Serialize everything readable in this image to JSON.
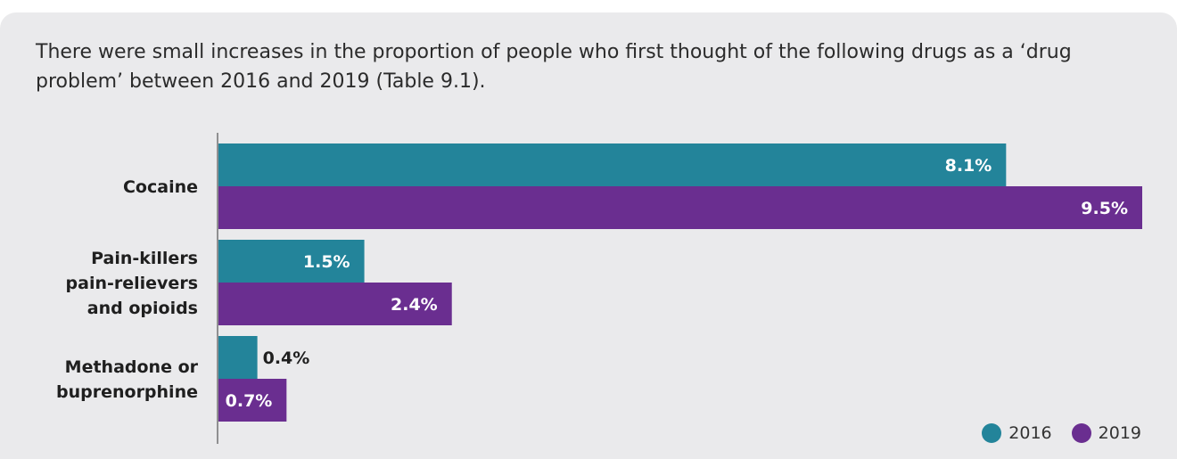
{
  "intro_text": "There were small increases in the proportion of people who first thought of the following drugs as a ‘drug problem’ between 2016 and 2019 (Table 9.1).",
  "colors": {
    "s2016": "#23849a",
    "s2019": "#6a2e90"
  },
  "chart_data": {
    "type": "bar",
    "orientation": "horizontal",
    "categories": [
      [
        "Cocaine"
      ],
      [
        "Pain-killers",
        "pain-relievers",
        "and opioids"
      ],
      [
        "Methadone or",
        "buprenorphine"
      ]
    ],
    "series": [
      {
        "name": "2016",
        "values": [
          8.1,
          1.5,
          0.4
        ],
        "labels": [
          "8.1%",
          "1.5%",
          "0.4%"
        ]
      },
      {
        "name": "2019",
        "values": [
          9.5,
          2.4,
          0.7
        ],
        "labels": [
          "9.5%",
          "2.4%",
          "0.7%"
        ]
      }
    ],
    "xlim": [
      0,
      9.5
    ],
    "legend": "bottom-right"
  }
}
